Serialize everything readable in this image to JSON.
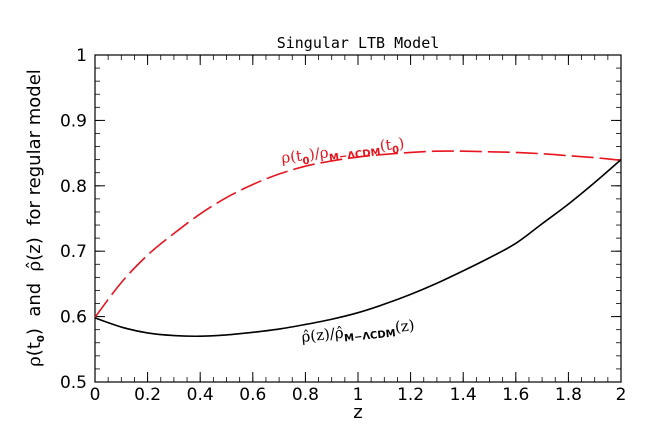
{
  "chart_data": {
    "type": "line",
    "title": "Singular LTB Model",
    "xlabel": "z",
    "ylabel_parts": {
      "rho": "ρ",
      "paren_open": "(t",
      "sub0": "0",
      "paren_close": ")",
      "mid": "  and  ",
      "rhohat": "ρ̂",
      "z_part": "(z)  for regular model"
    },
    "xlim": [
      0,
      2
    ],
    "ylim": [
      0.5,
      1.0
    ],
    "xticks": [
      0,
      0.2,
      0.4,
      0.6,
      0.8,
      1,
      1.2,
      1.4,
      1.6,
      1.8,
      2
    ],
    "xtick_labels": [
      "0",
      "0.2",
      "0.4",
      "0.6",
      "0.8",
      "1",
      "1.2",
      "1.4",
      "1.6",
      "1.8",
      "2"
    ],
    "yticks": [
      0.5,
      0.6,
      0.7,
      0.8,
      0.9,
      1.0
    ],
    "ytick_labels": [
      "0.5",
      "0.6",
      "0.7",
      "0.8",
      "0.9",
      "1"
    ],
    "series": [
      {
        "style": "dashed",
        "color": "#e8141e",
        "x": [
          0,
          0.1,
          0.2,
          0.3,
          0.4,
          0.5,
          0.6,
          0.7,
          0.8,
          0.9,
          1.0,
          1.1,
          1.2,
          1.3,
          1.4,
          1.5,
          1.6,
          1.7,
          1.8,
          1.9,
          2.0
        ],
        "y": [
          0.599,
          0.652,
          0.694,
          0.727,
          0.757,
          0.782,
          0.802,
          0.818,
          0.83,
          0.838,
          0.844,
          0.848,
          0.851,
          0.853,
          0.853,
          0.852,
          0.851,
          0.849,
          0.846,
          0.843,
          0.839
        ]
      },
      {
        "style": "solid",
        "color": "#000000",
        "x": [
          0,
          0.1,
          0.2,
          0.3,
          0.4,
          0.5,
          0.6,
          0.7,
          0.8,
          0.9,
          1.0,
          1.1,
          1.2,
          1.3,
          1.4,
          1.5,
          1.6,
          1.7,
          1.8,
          1.9,
          2.0
        ],
        "y": [
          0.598,
          0.584,
          0.575,
          0.571,
          0.57,
          0.572,
          0.576,
          0.581,
          0.588,
          0.596,
          0.606,
          0.619,
          0.634,
          0.651,
          0.67,
          0.69,
          0.712,
          0.742,
          0.772,
          0.805,
          0.84
        ]
      }
    ],
    "annotations": {
      "red": {
        "rho": "ρ(t",
        "sub0": "0",
        "close": ")/ρ",
        "subm": "M−ΛCDM",
        "paren": "(t",
        "sub0b": "0",
        "end": ")",
        "color": "#e8141e"
      },
      "black": {
        "head": "ρ̂(z)/ρ̂",
        "subm": "M−ΛCDM",
        "tail": "(z)",
        "color": "#000000"
      }
    }
  }
}
